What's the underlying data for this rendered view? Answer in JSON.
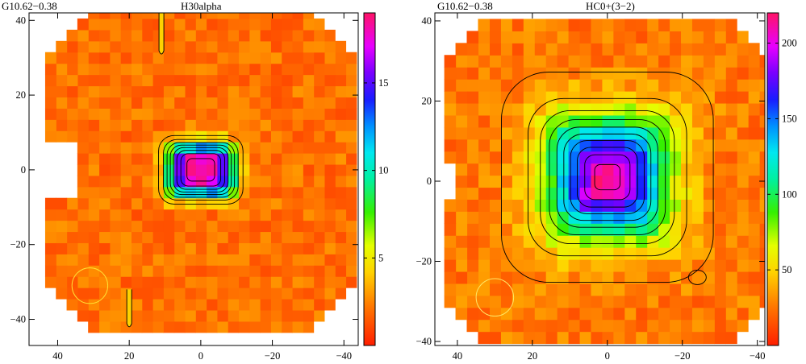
{
  "chart_data": [
    {
      "type": "heatmap",
      "source_label": "G10.62−0.38",
      "title": "H30alpha",
      "x_ticks": [
        "40",
        "20",
        "0",
        "−20",
        "−40"
      ],
      "x_tick_values": [
        40,
        20,
        0,
        -20,
        -40
      ],
      "y_ticks": [
        "40",
        "20",
        "0",
        "−20",
        "−40"
      ],
      "y_tick_values": [
        40,
        20,
        0,
        -20,
        -40
      ],
      "xlim": [
        48,
        -44
      ],
      "ylim": [
        -47,
        42
      ],
      "x_reversed": true,
      "colorbar": {
        "range": [
          0,
          19
        ],
        "ticks": [
          "5",
          "10",
          "15"
        ],
        "tick_values": [
          5,
          10,
          15
        ],
        "colormap": "red-orange-yellow-green-cyan-blue-magenta"
      },
      "peak": {
        "x": 0,
        "y": 0,
        "value": 19
      },
      "background_level": 2,
      "contour_levels": [
        4,
        6,
        8,
        10,
        12,
        14,
        16,
        18
      ],
      "features": [
        {
          "kind": "filament",
          "x": 11,
          "y_range": [
            31,
            42
          ]
        },
        {
          "kind": "filament",
          "x": 20,
          "y_range": [
            -42,
            -32
          ]
        }
      ],
      "beam": {
        "x": 31,
        "y": -31,
        "diameter": 10
      },
      "blank_region": {
        "x_range": [
          36,
          48
        ],
        "y_range": [
          -6,
          6
        ]
      }
    },
    {
      "type": "heatmap",
      "source_label": "G10.62−0.38",
      "title": "HC0+(3−2)",
      "x_ticks": [
        "40",
        "20",
        "0",
        "−20",
        "−40"
      ],
      "x_tick_values": [
        40,
        20,
        0,
        -20,
        -40
      ],
      "y_ticks": [
        "40",
        "20",
        "0",
        "−20",
        "−40"
      ],
      "y_tick_values": [
        40,
        20,
        0,
        -20,
        -40
      ],
      "xlim": [
        46,
        -42
      ],
      "ylim": [
        -41,
        42
      ],
      "x_reversed": true,
      "colorbar": {
        "range": [
          0,
          220
        ],
        "ticks": [
          "50",
          "100",
          "150",
          "200"
        ],
        "tick_values": [
          50,
          100,
          150,
          200
        ],
        "colormap": "red-orange-yellow-green-cyan-blue-magenta"
      },
      "peak": {
        "x": 0,
        "y": 1,
        "value": 220
      },
      "background_level": 25,
      "contour_levels": [
        30,
        50,
        70,
        90,
        110,
        130,
        150,
        170,
        190,
        210
      ],
      "features": [
        {
          "kind": "clump",
          "x": -24,
          "y": -24
        }
      ],
      "beam": {
        "x": 30,
        "y": -29,
        "diameter": 10
      },
      "blank_region": {
        "x_range": [
          40,
          46
        ],
        "y_range": [
          -4,
          4
        ]
      }
    }
  ]
}
